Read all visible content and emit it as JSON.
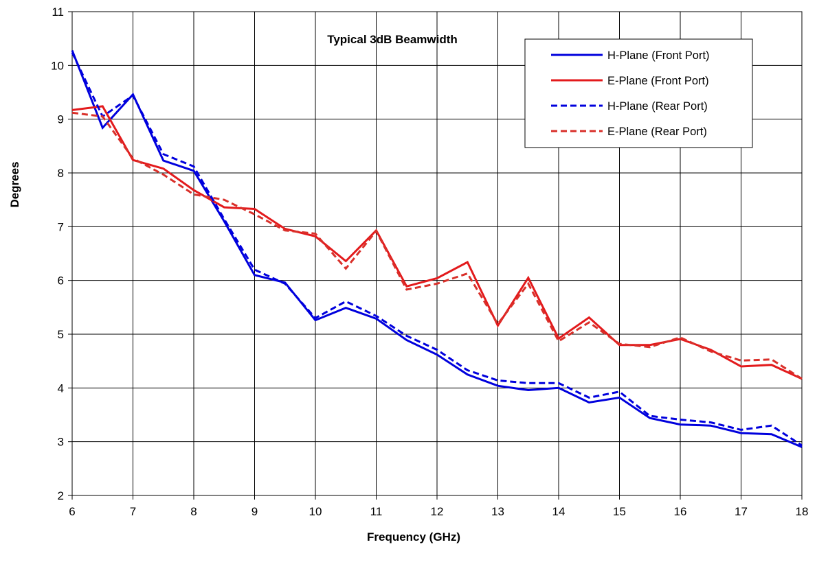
{
  "chart_data": {
    "type": "line",
    "title": "Typical 3dB Beamwidth",
    "xlabel": "Frequency (GHz)",
    "ylabel": "Degrees",
    "xlim": [
      6,
      18
    ],
    "ylim": [
      2,
      11
    ],
    "xticks": [
      6,
      7,
      8,
      9,
      10,
      11,
      12,
      13,
      14,
      15,
      16,
      17,
      18
    ],
    "yticks": [
      2,
      3,
      4,
      5,
      6,
      7,
      8,
      9,
      10,
      11
    ],
    "grid": true,
    "legend_position": "top-right",
    "x": [
      6,
      6.5,
      7,
      7.5,
      8,
      8.5,
      9,
      9.5,
      10,
      10.5,
      11,
      11.5,
      12,
      12.5,
      13,
      13.5,
      14,
      14.5,
      15,
      15.5,
      16,
      16.5,
      17,
      17.5,
      18
    ],
    "series": [
      {
        "name": "H-Plane (Front Port)",
        "color": "#0000dd",
        "dash": "solid",
        "values": [
          10.28,
          8.84,
          9.46,
          8.23,
          8.04,
          7.1,
          6.1,
          5.96,
          5.26,
          5.49,
          5.29,
          4.89,
          4.62,
          4.25,
          4.04,
          3.96,
          4.0,
          3.73,
          3.82,
          3.44,
          3.32,
          3.3,
          3.16,
          3.14,
          2.9
        ]
      },
      {
        "name": "E-Plane (Front Port)",
        "color": "#e31a1c",
        "dash": "solid",
        "values": [
          9.17,
          9.24,
          8.24,
          8.08,
          7.68,
          7.36,
          7.33,
          6.96,
          6.82,
          6.36,
          6.93,
          5.89,
          6.04,
          6.34,
          5.16,
          6.05,
          4.92,
          5.31,
          4.8,
          4.8,
          4.91,
          4.71,
          4.4,
          4.43,
          4.17
        ]
      },
      {
        "name": "H-Plane (Rear Port)",
        "color": "#0000dd",
        "dash": "dashed",
        "values": [
          10.24,
          9.05,
          9.44,
          8.35,
          8.12,
          7.14,
          6.2,
          5.94,
          5.3,
          5.61,
          5.34,
          4.97,
          4.71,
          4.33,
          4.14,
          4.09,
          4.09,
          3.82,
          3.93,
          3.48,
          3.41,
          3.36,
          3.22,
          3.3,
          2.93
        ]
      },
      {
        "name": "E-Plane (Rear Port)",
        "color": "#d9302a",
        "dash": "dashed",
        "values": [
          9.12,
          9.05,
          8.27,
          7.97,
          7.6,
          7.5,
          7.23,
          6.93,
          6.87,
          6.22,
          6.92,
          5.83,
          5.94,
          6.13,
          5.19,
          5.94,
          4.87,
          5.22,
          4.82,
          4.76,
          4.94,
          4.68,
          4.51,
          4.53,
          4.17
        ]
      }
    ]
  }
}
